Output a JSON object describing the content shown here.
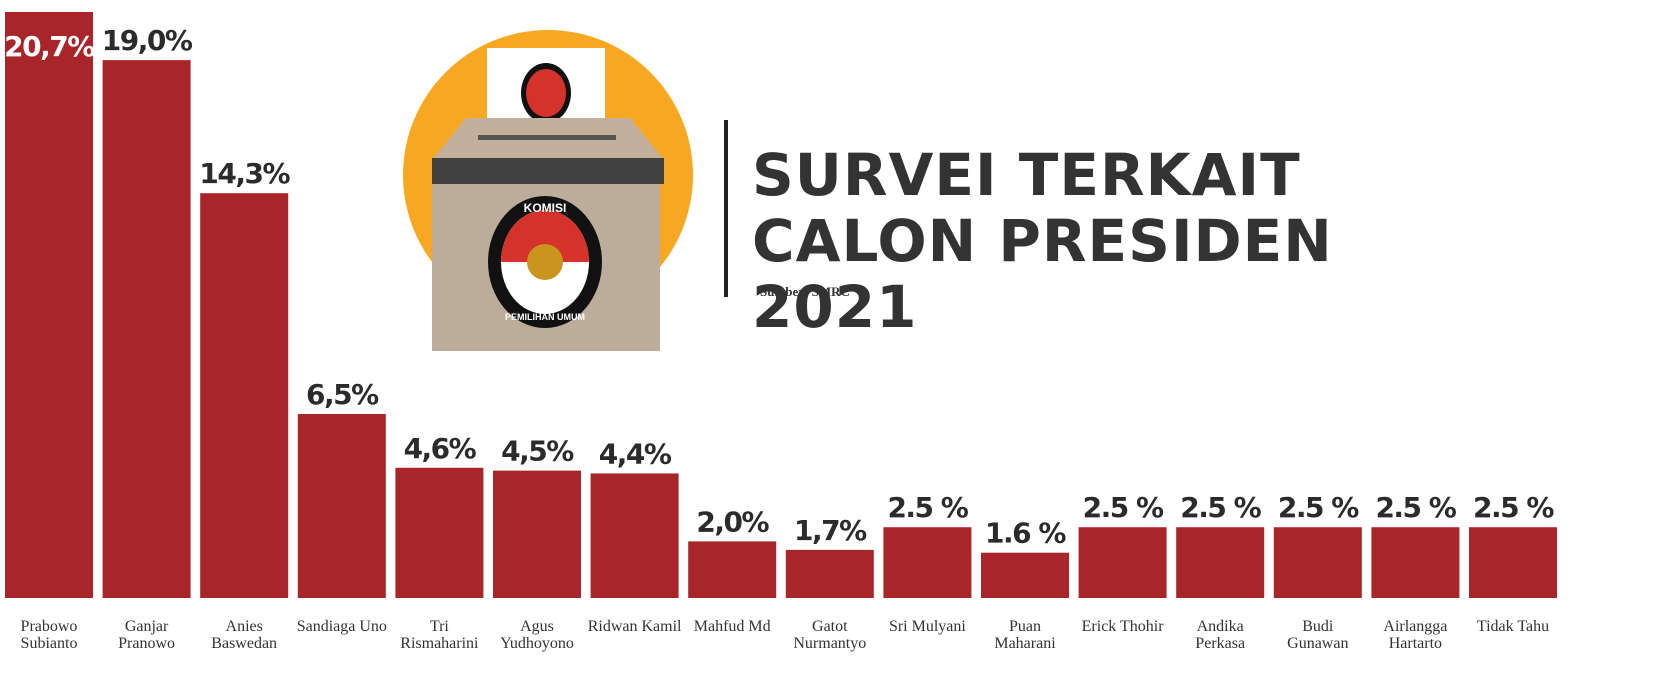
{
  "chart_data": {
    "type": "bar",
    "title": "SURVEI TERKAIT CALON PRESIDEN 2021",
    "subtitle": "Sumber: SMRC",
    "logo_text": [
      "KOMISI",
      "PEMILIHAN UMUM"
    ],
    "categories": [
      "Prabowo Subianto",
      "Ganjar Pranowo",
      "Anies Baswedan",
      "Sandiaga Uno",
      "Tri Rismaharini",
      "Agus Yudhoyono",
      "Ridwan Kamil",
      "Mahfud Md",
      "Gatot Nurmantyo",
      "Sri Mulyani",
      "Puan Maharani",
      "Erick Thohir",
      "Andika Perkasa",
      "Budi Gunawan",
      "Airlangga Hartarto",
      "Tidak Tahu"
    ],
    "values": [
      20.7,
      19.0,
      14.3,
      6.5,
      4.6,
      4.5,
      4.4,
      2.0,
      1.7,
      2.5,
      1.6,
      2.5,
      2.5,
      2.5,
      2.5,
      2.5
    ],
    "value_labels": [
      "20,7%",
      "19,0%",
      "14,3%",
      "6,5%",
      "4,6%",
      "4,5%",
      "4,4%",
      "2,0%",
      "1,7%",
      "2.5 %",
      "1.6 %",
      "2.5 %",
      "2.5 %",
      "2.5 %",
      "2.5 %",
      "2.5 %"
    ],
    "color": "#a8262a"
  }
}
